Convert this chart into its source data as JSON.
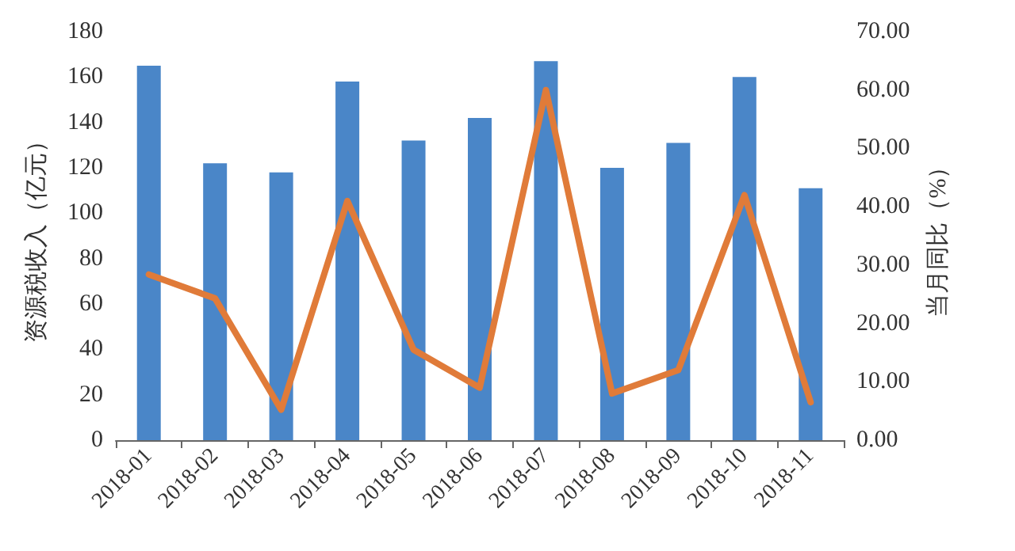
{
  "chart_data": {
    "type": "bar",
    "ylabel": "资源税收入（亿元）",
    "y2label": "当月同比（%）",
    "categories": [
      "2018-01",
      "2018-02",
      "2018-03",
      "2018-04",
      "2018-05",
      "2018-06",
      "2018-07",
      "2018-08",
      "2018-09",
      "2018-10",
      "2018-11"
    ],
    "series": [
      {
        "color": "#4a86c8",
        "values": [
          165,
          122,
          118,
          158,
          132,
          142,
          167,
          120,
          131,
          160,
          111
        ]
      },
      {
        "type": "line",
        "axis": "y2",
        "color": "#e07b39",
        "values": [
          28.4,
          24.3,
          5.2,
          41,
          15.5,
          9,
          60,
          8,
          12,
          42,
          6.5
        ]
      }
    ],
    "ylim": [
      0,
      180
    ],
    "yticks": [
      0,
      20,
      40,
      60,
      80,
      100,
      120,
      140,
      160,
      180
    ],
    "y2lim": [
      0,
      70
    ],
    "y2ticks": [
      {
        "value": 0,
        "label": "0.00"
      },
      {
        "value": 10,
        "label": "10.00"
      },
      {
        "value": 20,
        "label": "20.00"
      },
      {
        "value": 30,
        "label": "30.00"
      },
      {
        "value": 40,
        "label": "40.00"
      },
      {
        "value": 50,
        "label": "50.00"
      },
      {
        "value": 60,
        "label": "60.00"
      },
      {
        "value": 70,
        "label": "70.00"
      }
    ],
    "grid": false
  }
}
